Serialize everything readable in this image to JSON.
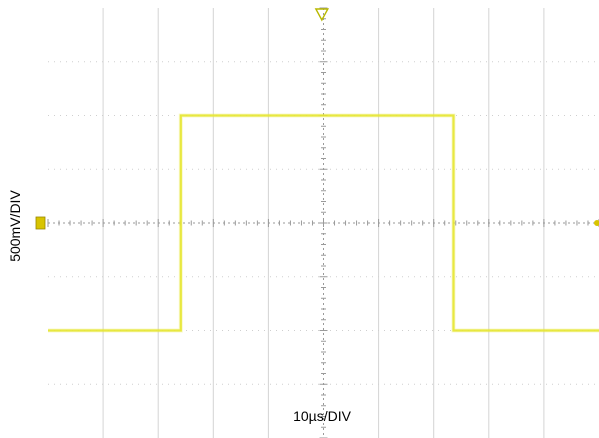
{
  "chart_data": {
    "type": "line",
    "xlabel": "10µs/DIV",
    "ylabel": "500mV/DIV",
    "x_divisions": 10,
    "y_divisions": 8,
    "x_range_us": [
      0,
      100
    ],
    "y_range_v": [
      -2.0,
      2.0
    ],
    "grid": true,
    "series": [
      {
        "values_x_us": [
          0,
          24.1,
          24.1,
          73.6,
          73.6,
          100
        ],
        "values_y_v": [
          -1.0,
          -1.0,
          1.0,
          1.0,
          -1.0,
          -1.0
        ]
      }
    ],
    "trigger_position_us": 49.7,
    "ground_level_v": 0.0
  },
  "colors": {
    "trace": "#e6e632",
    "grid_major": "#d4d4d4",
    "grid_dot": "#cfcfcf",
    "center": "#9a9a9a",
    "ground_marker": "#d8c400",
    "trigger_marker": "#b8b800"
  },
  "icons": {
    "trigger": "trigger-down-triangle-icon",
    "ground": "ground-level-marker-icon"
  }
}
